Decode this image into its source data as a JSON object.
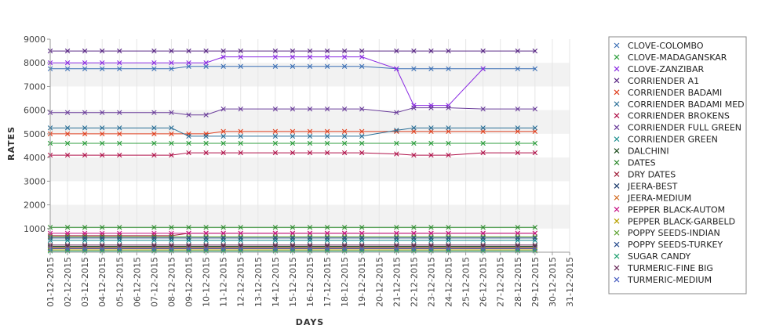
{
  "chart_data": {
    "type": "line",
    "xlabel": "DAYS",
    "ylabel": "RATES",
    "ylim": [
      0,
      9000
    ],
    "yticks": [
      1000,
      2000,
      3000,
      4000,
      5000,
      6000,
      7000,
      8000,
      9000
    ],
    "grid": "alternating horizontal bands",
    "legend_position": "right",
    "categories": [
      "01-12-2015",
      "02-12-2015",
      "03-12-2015",
      "04-12-2015",
      "05-12-2015",
      "06-12-2015",
      "07-12-2015",
      "08-12-2015",
      "09-12-2015",
      "10-12-2015",
      "11-12-2015",
      "12-12-2015",
      "13-12-2015",
      "14-12-2015",
      "15-12-2015",
      "16-12-2015",
      "17-12-2015",
      "18-12-2015",
      "19-12-2015",
      "20-12-2015",
      "21-12-2015",
      "22-12-2015",
      "23-12-2015",
      "24-12-2015",
      "25-12-2015",
      "26-12-2015",
      "27-12-2015",
      "28-12-2015",
      "29-12-2015",
      "30-12-2015",
      "31-12-2015"
    ],
    "series": [
      {
        "name": "CLOVE-COLOMBO",
        "color": "#3b6fb5",
        "values": [
          7750,
          7750,
          7750,
          7750,
          7750,
          null,
          7750,
          7750,
          7850,
          7850,
          7850,
          7850,
          null,
          7850,
          7850,
          7850,
          7850,
          7850,
          7850,
          null,
          7750,
          7750,
          7750,
          7750,
          null,
          7750,
          null,
          7750,
          7750,
          null,
          null
        ]
      },
      {
        "name": "CLOVE-MADAGANSKAR",
        "color": "#2e9e3e",
        "values": [
          4600,
          4600,
          4600,
          4600,
          4600,
          null,
          4600,
          4600,
          4600,
          4600,
          4600,
          4600,
          null,
          4600,
          4600,
          4600,
          4600,
          4600,
          4600,
          null,
          4600,
          4600,
          4600,
          4600,
          null,
          4600,
          null,
          4600,
          4600,
          null,
          null
        ]
      },
      {
        "name": "CLOVE-ZANZIBAR",
        "color": "#8a2be2",
        "values": [
          8000,
          8000,
          8000,
          8000,
          8000,
          null,
          8000,
          8000,
          8000,
          8000,
          8250,
          8250,
          null,
          8250,
          8250,
          8250,
          8250,
          8250,
          8250,
          null,
          7750,
          6200,
          6200,
          6200,
          null,
          7750,
          null,
          null,
          null,
          null,
          null
        ]
      },
      {
        "name": "CORRIENDER A1",
        "color": "#5b2a86",
        "values": [
          8500,
          8500,
          8500,
          8500,
          8500,
          null,
          8500,
          8500,
          8500,
          8500,
          8500,
          8500,
          null,
          8500,
          8500,
          8500,
          8500,
          8500,
          8500,
          null,
          8500,
          8500,
          8500,
          8500,
          null,
          8500,
          null,
          8500,
          8500,
          null,
          null
        ]
      },
      {
        "name": "CORRIENDER BADAMI",
        "color": "#e0401f",
        "values": [
          5000,
          5000,
          5000,
          5000,
          5000,
          null,
          5000,
          5000,
          5000,
          5000,
          5100,
          5100,
          null,
          5100,
          5100,
          5100,
          5100,
          5100,
          5100,
          null,
          5100,
          5100,
          5100,
          5100,
          null,
          5100,
          null,
          5100,
          5100,
          null,
          null
        ]
      },
      {
        "name": "CORRIENDER BADAMI MED",
        "color": "#2a6f97",
        "values": [
          5250,
          5250,
          5250,
          5250,
          5250,
          null,
          5250,
          5250,
          4900,
          4900,
          4900,
          4900,
          null,
          4900,
          4900,
          4900,
          4900,
          4900,
          4900,
          null,
          5150,
          5250,
          5250,
          5250,
          null,
          5250,
          null,
          5250,
          5250,
          null,
          null
        ]
      },
      {
        "name": "CORRIENDER BROKENS",
        "color": "#b0124a",
        "values": [
          4100,
          4100,
          4100,
          4100,
          4100,
          null,
          4100,
          4100,
          4200,
          4200,
          4200,
          4200,
          null,
          4200,
          4200,
          4200,
          4200,
          4200,
          4200,
          null,
          4150,
          4100,
          4100,
          4100,
          null,
          4200,
          null,
          4200,
          4200,
          null,
          null
        ]
      },
      {
        "name": "CORRIENDER FULL GREEN",
        "color": "#6a3d9a",
        "values": [
          5900,
          5900,
          5900,
          5900,
          5900,
          null,
          5900,
          5900,
          5800,
          5800,
          6050,
          6050,
          null,
          6050,
          6050,
          6050,
          6050,
          6050,
          6050,
          null,
          5900,
          6100,
          6100,
          6100,
          null,
          6050,
          null,
          6050,
          6050,
          null,
          null
        ]
      },
      {
        "name": "CORRIENDER GREEN",
        "color": "#138a8a",
        "values": [
          500,
          500,
          500,
          500,
          500,
          null,
          500,
          500,
          500,
          500,
          500,
          500,
          null,
          500,
          500,
          500,
          500,
          500,
          500,
          null,
          500,
          500,
          500,
          500,
          null,
          500,
          null,
          500,
          500,
          null,
          null
        ]
      },
      {
        "name": "DALCHINI",
        "color": "#1f4d1f",
        "values": [
          250,
          250,
          250,
          250,
          250,
          null,
          250,
          250,
          250,
          250,
          250,
          250,
          null,
          250,
          250,
          250,
          250,
          250,
          250,
          null,
          250,
          250,
          250,
          250,
          null,
          250,
          null,
          250,
          250,
          null,
          null
        ]
      },
      {
        "name": "DATES",
        "color": "#2e8b2e",
        "values": [
          1050,
          1050,
          1050,
          1050,
          1050,
          null,
          1050,
          1050,
          1050,
          1050,
          1050,
          1050,
          null,
          1050,
          1050,
          1050,
          1050,
          1050,
          1050,
          null,
          1050,
          1050,
          1050,
          1050,
          null,
          1050,
          null,
          1050,
          1050,
          null,
          null
        ]
      },
      {
        "name": "DRY DATES",
        "color": "#a01f3a",
        "values": [
          700,
          700,
          700,
          700,
          700,
          null,
          700,
          700,
          800,
          800,
          800,
          800,
          null,
          800,
          800,
          800,
          800,
          800,
          800,
          null,
          800,
          800,
          800,
          800,
          null,
          800,
          null,
          800,
          800,
          null,
          null
        ]
      },
      {
        "name": "JEERA-BEST",
        "color": "#1a3a6b",
        "values": [
          200,
          200,
          200,
          200,
          200,
          null,
          200,
          200,
          200,
          200,
          200,
          200,
          null,
          200,
          200,
          200,
          200,
          200,
          200,
          null,
          200,
          200,
          200,
          200,
          null,
          200,
          null,
          200,
          200,
          null,
          null
        ]
      },
      {
        "name": "JEERA-MEDIUM",
        "color": "#d2691e",
        "values": [
          180,
          180,
          180,
          180,
          180,
          null,
          180,
          180,
          180,
          180,
          180,
          180,
          null,
          180,
          180,
          180,
          180,
          180,
          180,
          null,
          180,
          180,
          180,
          180,
          null,
          180,
          null,
          180,
          180,
          null,
          null
        ]
      },
      {
        "name": "PEPPER BLACK-AUTOM",
        "color": "#c71585",
        "values": [
          800,
          800,
          800,
          800,
          800,
          null,
          800,
          800,
          800,
          800,
          800,
          800,
          null,
          800,
          800,
          800,
          800,
          800,
          800,
          null,
          800,
          800,
          800,
          800,
          null,
          800,
          null,
          800,
          800,
          null,
          null
        ]
      },
      {
        "name": "PEPPER BLACK-GARBELD",
        "color": "#b8a000",
        "values": [
          100,
          100,
          100,
          100,
          100,
          null,
          100,
          100,
          100,
          100,
          100,
          100,
          null,
          100,
          100,
          100,
          100,
          100,
          100,
          null,
          100,
          100,
          100,
          100,
          null,
          100,
          null,
          100,
          100,
          null,
          null
        ]
      },
      {
        "name": "POPPY SEEDS-INDIAN",
        "color": "#5aa02c",
        "values": [
          650,
          650,
          650,
          650,
          650,
          null,
          650,
          650,
          650,
          650,
          650,
          650,
          null,
          650,
          650,
          650,
          650,
          650,
          650,
          null,
          650,
          650,
          650,
          650,
          null,
          650,
          null,
          650,
          650,
          null,
          null
        ]
      },
      {
        "name": "POPPY SEEDS-TURKEY",
        "color": "#2b4f8f",
        "values": [
          600,
          600,
          600,
          600,
          600,
          null,
          600,
          600,
          600,
          600,
          600,
          600,
          null,
          600,
          600,
          600,
          600,
          600,
          600,
          null,
          600,
          600,
          600,
          600,
          null,
          600,
          null,
          600,
          600,
          null,
          null
        ]
      },
      {
        "name": "SUGAR CANDY",
        "color": "#20a070",
        "values": [
          50,
          50,
          50,
          50,
          50,
          null,
          50,
          50,
          50,
          50,
          50,
          50,
          null,
          50,
          50,
          50,
          50,
          50,
          50,
          null,
          50,
          50,
          50,
          50,
          null,
          50,
          null,
          50,
          50,
          null,
          null
        ]
      },
      {
        "name": "TURMERIC-FINE BIG",
        "color": "#6b2d5c",
        "values": [
          300,
          300,
          300,
          300,
          300,
          null,
          300,
          300,
          300,
          300,
          300,
          300,
          null,
          300,
          300,
          300,
          300,
          300,
          300,
          null,
          300,
          300,
          300,
          300,
          null,
          300,
          null,
          300,
          300,
          null,
          null
        ]
      },
      {
        "name": "TURMERIC-MEDIUM",
        "color": "#4a5fc1",
        "values": [
          150,
          150,
          150,
          150,
          150,
          null,
          150,
          150,
          150,
          150,
          150,
          150,
          null,
          150,
          150,
          150,
          150,
          150,
          150,
          null,
          150,
          150,
          150,
          150,
          null,
          150,
          null,
          150,
          150,
          null,
          null
        ]
      }
    ]
  }
}
